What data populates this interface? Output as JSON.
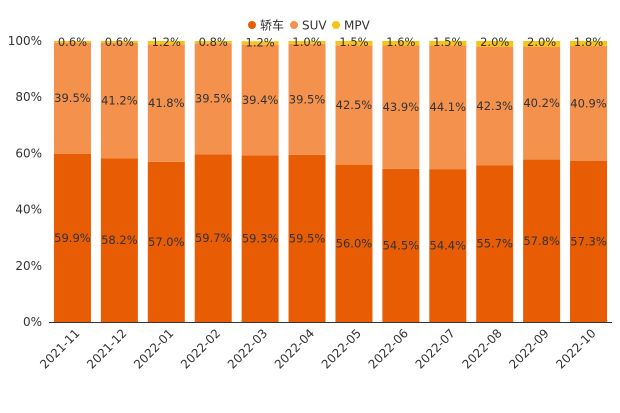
{
  "chart_data": {
    "type": "bar",
    "stacked": true,
    "categories": [
      "2021-11",
      "2021-12",
      "2022-01",
      "2022-02",
      "2022-03",
      "2022-04",
      "2022-05",
      "2022-06",
      "2022-07",
      "2022-08",
      "2022-09",
      "2022-10"
    ],
    "series": [
      {
        "name": "轿车",
        "color": "#e85d04",
        "values": [
          59.9,
          58.2,
          57.0,
          59.7,
          59.3,
          59.5,
          56.0,
          54.5,
          54.4,
          55.7,
          57.8,
          57.3
        ],
        "labels": [
          "59.9%",
          "58.2%",
          "57.0%",
          "59.7%",
          "59.3%",
          "59.5%",
          "56.0%",
          "54.5%",
          "54.4%",
          "55.7%",
          "57.8%",
          "57.3%"
        ]
      },
      {
        "name": "SUV",
        "color": "#f4914d",
        "values": [
          39.5,
          41.2,
          41.8,
          39.5,
          39.4,
          39.5,
          42.5,
          43.9,
          44.1,
          42.3,
          40.2,
          40.9
        ],
        "labels": [
          "39.5%",
          "41.2%",
          "41.8%",
          "39.5%",
          "39.4%",
          "39.5%",
          "42.5%",
          "43.9%",
          "44.1%",
          "42.3%",
          "40.2%",
          "40.9%"
        ]
      },
      {
        "name": "MPV",
        "color": "#f6c416",
        "values": [
          0.6,
          0.6,
          1.2,
          0.8,
          1.2,
          1.0,
          1.5,
          1.6,
          1.5,
          2.0,
          2.0,
          1.8
        ],
        "labels": [
          "0.6%",
          "0.6%",
          "1.2%",
          "0.8%",
          "1.2%",
          "1.0%",
          "1.5%",
          "1.6%",
          "1.5%",
          "2.0%",
          "2.0%",
          "1.8%"
        ]
      }
    ],
    "ylim": [
      0,
      100
    ],
    "yticks": [
      0,
      20,
      40,
      60,
      80,
      100
    ],
    "ytick_labels": [
      "0%",
      "20%",
      "40%",
      "60%",
      "80%",
      "100%"
    ],
    "legend_position": "top-center",
    "grid": false
  }
}
